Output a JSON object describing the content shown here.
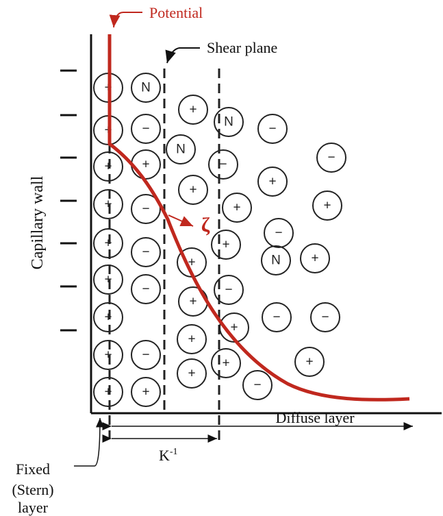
{
  "labels": {
    "potential": "Potential",
    "shear_plane": "Shear plane",
    "capillary_wall": "Capillary wall",
    "zeta": "ζ",
    "diffuse_layer": "Diffuse layer",
    "debye_base": "K",
    "debye_exp": "-1",
    "fixed_lines": [
      "Fixed",
      "(Stern)",
      "layer"
    ]
  },
  "ions": [
    "+",
    "+",
    "+",
    "+",
    "+",
    "+",
    "+",
    "+",
    "+",
    "N",
    "−",
    "+",
    "−",
    "−",
    "−",
    "−",
    "+",
    "+",
    "N",
    "+",
    "+",
    "+",
    "+",
    "+",
    "N",
    "−",
    "+",
    "+",
    "−",
    "+",
    "+",
    "−",
    "+",
    "−",
    "N",
    "+",
    "−",
    "−",
    "+",
    "−",
    "−",
    "+"
  ]
}
